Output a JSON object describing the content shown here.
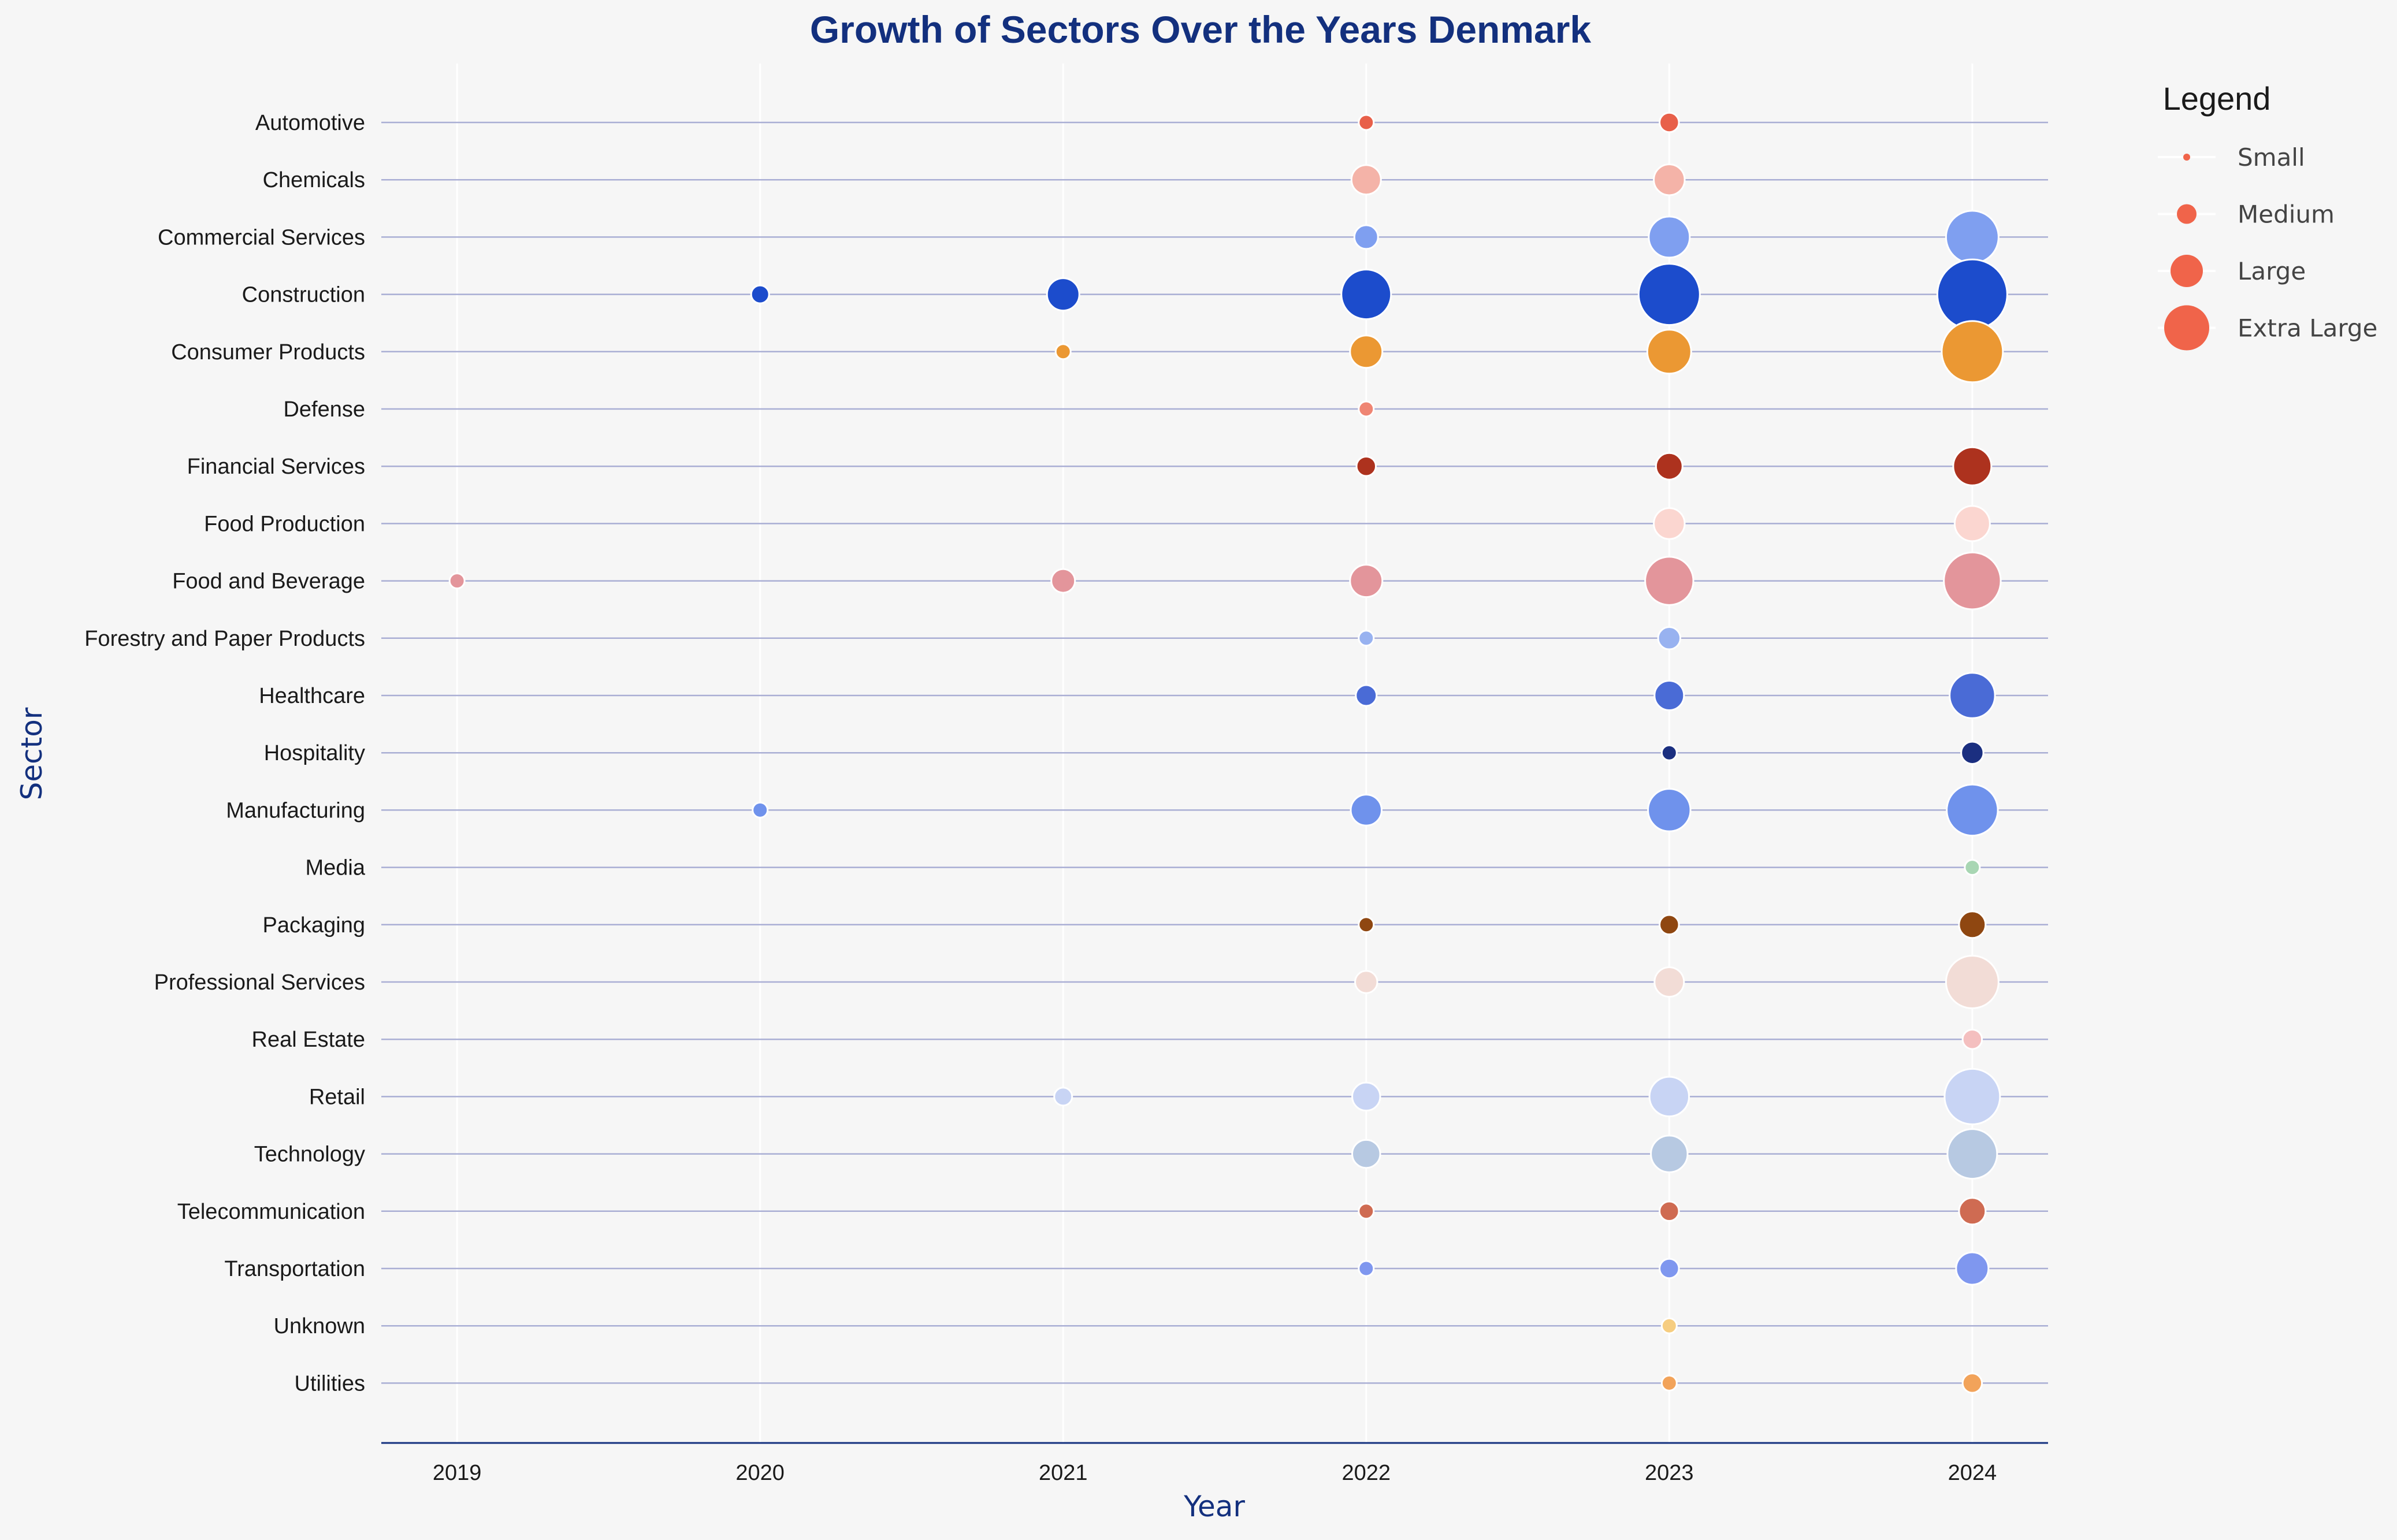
{
  "chart_data": {
    "type": "scatter",
    "title": "Growth of Sectors Over the Years Denmark",
    "xlabel": "Year",
    "ylabel": "Sector",
    "x_ticks": [
      2019,
      2020,
      2021,
      2022,
      2023,
      2024
    ],
    "xlim": [
      2018.75,
      2024.25
    ],
    "grid": "vertical and horizontal",
    "legend": {
      "title": "Legend",
      "placement": "right, outside plot",
      "color": "#f0644a",
      "items": [
        {
          "label": "Small",
          "size": 1
        },
        {
          "label": "Medium",
          "size": 2
        },
        {
          "label": "Large",
          "size": 3
        },
        {
          "label": "Extra Large",
          "size": 4
        }
      ]
    },
    "categories": [
      "Automotive",
      "Chemicals",
      "Commercial Services",
      "Construction",
      "Consumer Products",
      "Defense",
      "Financial Services",
      "Food Production",
      "Food and Beverage",
      "Forestry and Paper Products",
      "Healthcare",
      "Hospitality",
      "Manufacturing",
      "Media",
      "Packaging",
      "Professional Services",
      "Real Estate",
      "Retail",
      "Technology",
      "Telecommunication",
      "Transportation",
      "Unknown",
      "Utilities"
    ],
    "series": [
      {
        "sector": "Automotive",
        "color": "#e8604a",
        "points": [
          {
            "x": 2022,
            "size": 1
          },
          {
            "x": 2023,
            "size": 1.3
          }
        ]
      },
      {
        "sector": "Chemicals",
        "color": "#f4b3a8",
        "points": [
          {
            "x": 2022,
            "size": 2
          },
          {
            "x": 2023,
            "size": 2.1
          }
        ]
      },
      {
        "sector": "Commercial Services",
        "color": "#7f9ff0",
        "points": [
          {
            "x": 2022,
            "size": 1.6
          },
          {
            "x": 2023,
            "size": 2.8
          },
          {
            "x": 2024,
            "size": 3.6
          }
        ]
      },
      {
        "sector": "Construction",
        "color": "#1c4ccc",
        "points": [
          {
            "x": 2020,
            "size": 1.2
          },
          {
            "x": 2021,
            "size": 2.2
          },
          {
            "x": 2022,
            "size": 3.4
          },
          {
            "x": 2023,
            "size": 4.2
          },
          {
            "x": 2024,
            "size": 4.8
          }
        ]
      },
      {
        "sector": "Consumer Products",
        "color": "#eb9833",
        "points": [
          {
            "x": 2021,
            "size": 1
          },
          {
            "x": 2022,
            "size": 2.2
          },
          {
            "x": 2023,
            "size": 3
          },
          {
            "x": 2024,
            "size": 4.2
          }
        ]
      },
      {
        "sector": "Defense",
        "color": "#ef8573",
        "points": [
          {
            "x": 2022,
            "size": 1
          }
        ]
      },
      {
        "sector": "Financial Services",
        "color": "#ad321e",
        "points": [
          {
            "x": 2022,
            "size": 1.3
          },
          {
            "x": 2023,
            "size": 1.8
          },
          {
            "x": 2024,
            "size": 2.6
          }
        ]
      },
      {
        "sector": "Food Production",
        "color": "#fbd6d0",
        "points": [
          {
            "x": 2023,
            "size": 2.1
          },
          {
            "x": 2024,
            "size": 2.4
          }
        ]
      },
      {
        "sector": "Food and Beverage",
        "color": "#e3959b",
        "points": [
          {
            "x": 2019,
            "size": 1
          },
          {
            "x": 2021,
            "size": 1.6
          },
          {
            "x": 2022,
            "size": 2.2
          },
          {
            "x": 2023,
            "size": 3.3
          },
          {
            "x": 2024,
            "size": 3.9
          }
        ]
      },
      {
        "sector": "Forestry and Paper Products",
        "color": "#98b2f0",
        "points": [
          {
            "x": 2022,
            "size": 1
          },
          {
            "x": 2023,
            "size": 1.5
          }
        ]
      },
      {
        "sector": "Healthcare",
        "color": "#4a6bd6",
        "points": [
          {
            "x": 2022,
            "size": 1.4
          },
          {
            "x": 2023,
            "size": 2
          },
          {
            "x": 2024,
            "size": 3.1
          }
        ]
      },
      {
        "sector": "Hospitality",
        "color": "#1b2f80",
        "points": [
          {
            "x": 2023,
            "size": 1
          },
          {
            "x": 2024,
            "size": 1.5
          }
        ]
      },
      {
        "sector": "Manufacturing",
        "color": "#6f92ec",
        "points": [
          {
            "x": 2020,
            "size": 1
          },
          {
            "x": 2022,
            "size": 2.1
          },
          {
            "x": 2023,
            "size": 2.9
          },
          {
            "x": 2024,
            "size": 3.5
          }
        ]
      },
      {
        "sector": "Media",
        "color": "#a8d6b3",
        "points": [
          {
            "x": 2024,
            "size": 1
          }
        ]
      },
      {
        "sector": "Packaging",
        "color": "#8f4711",
        "points": [
          {
            "x": 2022,
            "size": 1
          },
          {
            "x": 2023,
            "size": 1.3
          },
          {
            "x": 2024,
            "size": 1.8
          }
        ]
      },
      {
        "sector": "Professional Services",
        "color": "#f2dcd6",
        "points": [
          {
            "x": 2022,
            "size": 1.5
          },
          {
            "x": 2023,
            "size": 2
          },
          {
            "x": 2024,
            "size": 3.6
          }
        ]
      },
      {
        "sector": "Real Estate",
        "color": "#f4bfbf",
        "points": [
          {
            "x": 2024,
            "size": 1.3
          }
        ]
      },
      {
        "sector": "Retail",
        "color": "#c8d4f4",
        "points": [
          {
            "x": 2021,
            "size": 1.2
          },
          {
            "x": 2022,
            "size": 1.9
          },
          {
            "x": 2023,
            "size": 2.7
          },
          {
            "x": 2024,
            "size": 3.8
          }
        ]
      },
      {
        "sector": "Technology",
        "color": "#b7c9e2",
        "points": [
          {
            "x": 2022,
            "size": 1.9
          },
          {
            "x": 2023,
            "size": 2.5
          },
          {
            "x": 2024,
            "size": 3.4
          }
        ]
      },
      {
        "sector": "Telecommunication",
        "color": "#cf6b52",
        "points": [
          {
            "x": 2022,
            "size": 1
          },
          {
            "x": 2023,
            "size": 1.3
          },
          {
            "x": 2024,
            "size": 1.8
          }
        ]
      },
      {
        "sector": "Transportation",
        "color": "#7f97ef",
        "points": [
          {
            "x": 2022,
            "size": 1
          },
          {
            "x": 2023,
            "size": 1.3
          },
          {
            "x": 2024,
            "size": 2.2
          }
        ]
      },
      {
        "sector": "Unknown",
        "color": "#f6cd80",
        "points": [
          {
            "x": 2023,
            "size": 1
          }
        ]
      },
      {
        "sector": "Utilities",
        "color": "#f2a35a",
        "points": [
          {
            "x": 2023,
            "size": 1
          },
          {
            "x": 2024,
            "size": 1.3
          }
        ]
      }
    ]
  }
}
